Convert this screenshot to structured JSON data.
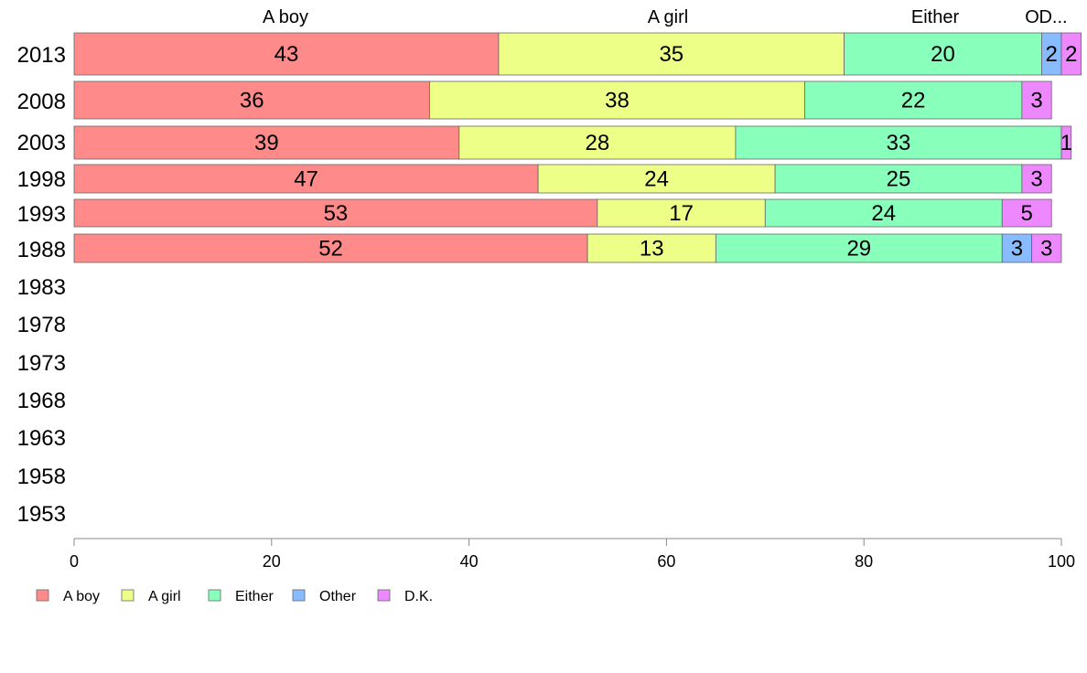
{
  "chart_data": {
    "type": "bar",
    "orientation": "horizontal",
    "stacked": true,
    "categories": [
      "2013",
      "2008",
      "2003",
      "1998",
      "1993",
      "1988",
      "1983",
      "1978",
      "1973",
      "1968",
      "1963",
      "1958",
      "1953"
    ],
    "series": [
      {
        "name": "A boy",
        "color": "#ff8a8a",
        "values": [
          43,
          36,
          39,
          47,
          53,
          52,
          null,
          null,
          null,
          null,
          null,
          null,
          null
        ]
      },
      {
        "name": "A girl",
        "color": "#eeff88",
        "values": [
          35,
          38,
          28,
          24,
          17,
          13,
          null,
          null,
          null,
          null,
          null,
          null,
          null
        ]
      },
      {
        "name": "Either",
        "color": "#88ffbb",
        "values": [
          20,
          22,
          33,
          25,
          24,
          29,
          null,
          null,
          null,
          null,
          null,
          null,
          null
        ]
      },
      {
        "name": "Other",
        "color": "#88bbff",
        "values": [
          2,
          0,
          0,
          0,
          0,
          3,
          null,
          null,
          null,
          null,
          null,
          null,
          null
        ]
      },
      {
        "name": "D.K.",
        "color": "#ee88ff",
        "values": [
          2,
          3,
          1,
          3,
          5,
          3,
          null,
          null,
          null,
          null,
          null,
          null,
          null
        ]
      }
    ],
    "column_headers": [
      "A boy",
      "A girl",
      "Either",
      "O",
      "D..."
    ],
    "xlim": [
      0,
      100
    ],
    "xticks": [
      "0",
      "20",
      "40",
      "60",
      "80",
      "100"
    ],
    "grid": false,
    "legend_position": "bottom-left"
  }
}
